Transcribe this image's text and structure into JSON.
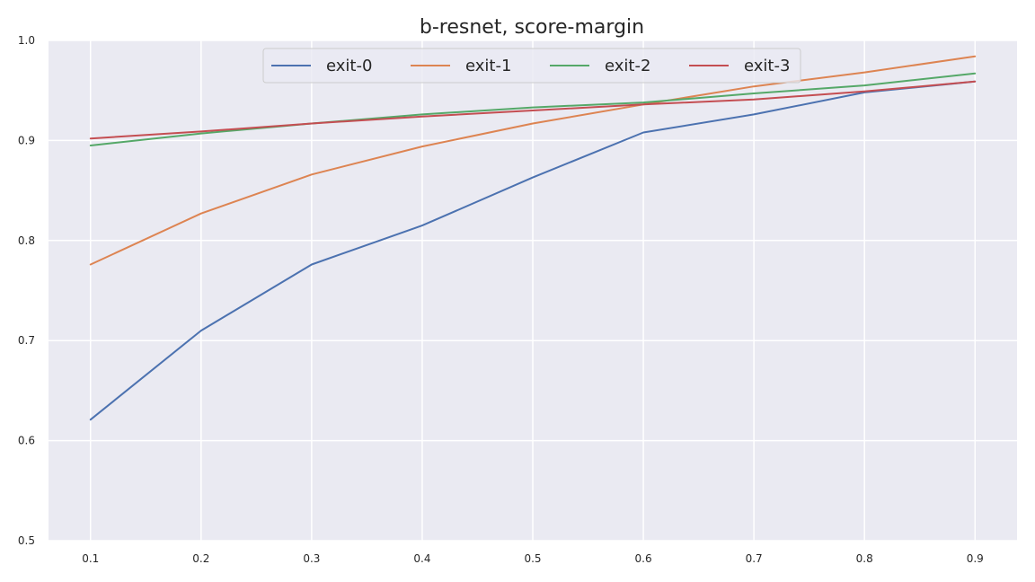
{
  "chart_data": {
    "type": "line",
    "title": "b-resnet, score-margin",
    "xlabel": "",
    "ylabel": "",
    "x": [
      0.1,
      0.2,
      0.3,
      0.4,
      0.5,
      0.6,
      0.7,
      0.8,
      0.9
    ],
    "x_tick_labels": [
      "0.1",
      "0.2",
      "0.3",
      "0.4",
      "0.5",
      "0.6",
      "0.7",
      "0.8",
      "0.9"
    ],
    "y_ticks": [
      0.5,
      0.6,
      0.7,
      0.8,
      0.9,
      1.0
    ],
    "y_tick_labels": [
      "0.5",
      "0.6",
      "0.7",
      "0.8",
      "0.9",
      "1.0"
    ],
    "xlim": [
      0.062,
      0.938
    ],
    "ylim": [
      0.5,
      1.0
    ],
    "grid": true,
    "legend_position": "top-center",
    "background_color": "#eaeaf2",
    "grid_color": "#ffffff",
    "series": [
      {
        "name": "exit-0",
        "color": "#4c72b0",
        "values": [
          0.621,
          0.71,
          0.776,
          0.815,
          0.863,
          0.908,
          0.926,
          0.948,
          0.959
        ]
      },
      {
        "name": "exit-1",
        "color": "#dd8452",
        "values": [
          0.776,
          0.827,
          0.866,
          0.894,
          0.917,
          0.936,
          0.954,
          0.968,
          0.984
        ]
      },
      {
        "name": "exit-2",
        "color": "#55a868",
        "values": [
          0.895,
          0.907,
          0.917,
          0.926,
          0.933,
          0.938,
          0.947,
          0.955,
          0.967
        ]
      },
      {
        "name": "exit-3",
        "color": "#c44e52",
        "values": [
          0.902,
          0.909,
          0.917,
          0.924,
          0.93,
          0.936,
          0.941,
          0.949,
          0.959
        ]
      }
    ]
  }
}
